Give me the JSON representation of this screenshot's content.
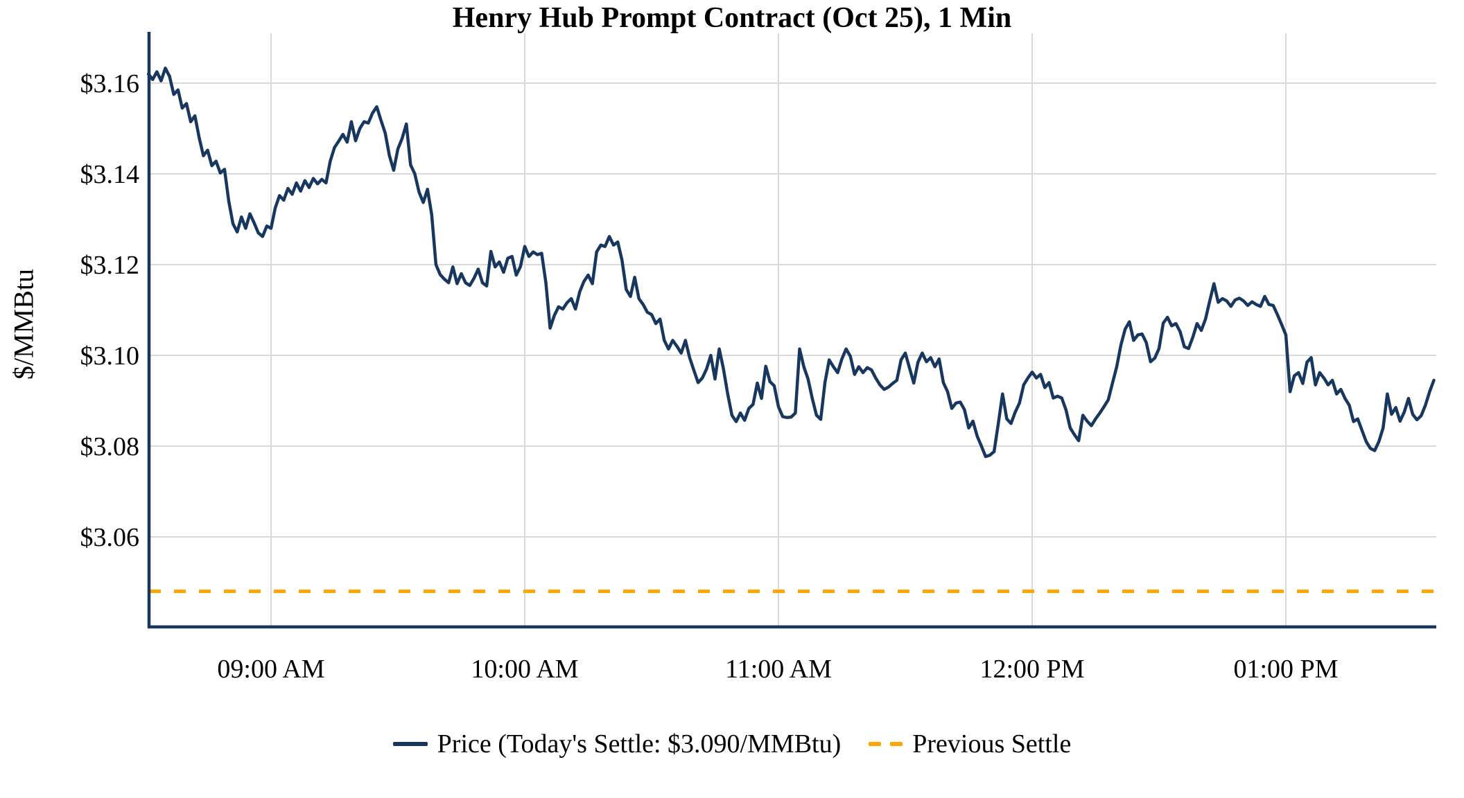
{
  "title": "Henry Hub Prompt Contract (Oct 25), 1 Min",
  "y_axis_label": "$/MMBtu",
  "legend": {
    "price_label": "Price (Today's Settle: $3.090/MMBtu)",
    "previous_settle_label": "Previous Settle"
  },
  "colors": {
    "price_line": "#17375E",
    "previous_settle_line": "#FFA500",
    "gridline": "#D9D9D9",
    "axis": "#17375E",
    "text": "#000000",
    "background": "#FFFFFF"
  },
  "chart_data": {
    "type": "line",
    "title": "Henry Hub Prompt Contract (Oct 25), 1 Min",
    "xlabel": "",
    "ylabel": "$/MMBtu",
    "grid": true,
    "legend_position": "bottom",
    "ylim": [
      3.04,
      3.171
    ],
    "y_ticks": [
      {
        "label": "$3.16",
        "value": 3.16
      },
      {
        "label": "$3.14",
        "value": 3.14
      },
      {
        "label": "$3.12",
        "value": 3.12
      },
      {
        "label": "$3.10",
        "value": 3.1
      },
      {
        "label": "$3.08",
        "value": 3.08
      },
      {
        "label": "$3.06",
        "value": 3.06
      }
    ],
    "x_start_time": "8:31 AM",
    "x_interval_minutes": 1,
    "x_ticks": [
      {
        "label": "09:00 AM",
        "minute": 29
      },
      {
        "label": "10:00 AM",
        "minute": 89
      },
      {
        "label": "11:00 AM",
        "minute": 149
      },
      {
        "label": "12:00 PM",
        "minute": 209
      },
      {
        "label": "01:00 PM",
        "minute": 269
      }
    ],
    "todays_settle": 3.09,
    "previous_settle": 3.048,
    "series": [
      {
        "name": "Price",
        "values": [
          3.162,
          3.1608,
          3.1625,
          3.1605,
          3.1633,
          3.1615,
          3.1575,
          3.1585,
          3.1545,
          3.1555,
          3.1515,
          3.1528,
          3.148,
          3.144,
          3.1452,
          3.1418,
          3.1428,
          3.1402,
          3.141,
          3.134,
          3.129,
          3.1272,
          3.1305,
          3.128,
          3.1312,
          3.1292,
          3.127,
          3.1262,
          3.1285,
          3.128,
          3.1325,
          3.1352,
          3.1342,
          3.1368,
          3.1355,
          3.138,
          3.1362,
          3.1385,
          3.137,
          3.139,
          3.1378,
          3.1388,
          3.138,
          3.1428,
          3.1458,
          3.1472,
          3.1487,
          3.147,
          3.1515,
          3.1473,
          3.15,
          3.1515,
          3.1512,
          3.1534,
          3.1548,
          3.1518,
          3.149,
          3.144,
          3.1408,
          3.1455,
          3.1478,
          3.151,
          3.142,
          3.14,
          3.136,
          3.1337,
          3.1366,
          3.131,
          3.12,
          3.1178,
          3.1168,
          3.116,
          3.1195,
          3.1158,
          3.118,
          3.116,
          3.1154,
          3.117,
          3.119,
          3.116,
          3.1153,
          3.1229,
          3.1195,
          3.1206,
          3.1183,
          3.1214,
          3.1218,
          3.1177,
          3.1196,
          3.124,
          3.1218,
          3.1228,
          3.1222,
          3.1225,
          3.116,
          3.106,
          3.1088,
          3.1107,
          3.1102,
          3.1116,
          3.1125,
          3.1102,
          3.114,
          3.1163,
          3.1177,
          3.1158,
          3.1228,
          3.1243,
          3.124,
          3.1262,
          3.1243,
          3.125,
          3.121,
          3.1145,
          3.113,
          3.1172,
          3.1125,
          3.1112,
          3.1095,
          3.109,
          3.107,
          3.108,
          3.1033,
          3.1014,
          3.1033,
          3.102,
          3.1005,
          3.1033,
          3.0995,
          3.0967,
          3.094,
          3.095,
          3.097,
          3.1,
          3.0948,
          3.1014,
          3.097,
          3.0915,
          3.0868,
          3.0854,
          3.0873,
          3.0857,
          3.0883,
          3.0892,
          3.0939,
          3.0905,
          3.0976,
          3.0942,
          3.0933,
          3.0887,
          3.0865,
          3.0863,
          3.0864,
          3.0873,
          3.1014,
          3.0975,
          3.0948,
          3.0905,
          3.0868,
          3.0859,
          3.094,
          3.099,
          3.0975,
          3.0962,
          3.0992,
          3.1014,
          3.0998,
          3.0958,
          3.0975,
          3.0962,
          3.0973,
          3.0968,
          3.095,
          3.0935,
          3.0925,
          3.093,
          3.0938,
          3.0945,
          3.099,
          3.1005,
          3.0972,
          3.0939,
          3.0985,
          3.1005,
          3.0986,
          3.0995,
          3.0975,
          3.0992,
          3.094,
          3.092,
          3.0883,
          3.0895,
          3.0897,
          3.088,
          3.084,
          3.0855,
          3.0822,
          3.08,
          3.0777,
          3.078,
          3.0788,
          3.085,
          3.0915,
          3.086,
          3.085,
          3.0875,
          3.0895,
          3.0935,
          3.095,
          3.0963,
          3.095,
          3.0958,
          3.0929,
          3.094,
          3.0906,
          3.091,
          3.0906,
          3.088,
          3.084,
          3.0825,
          3.0812,
          3.0868,
          3.0855,
          3.0845,
          3.086,
          3.0873,
          3.0887,
          3.0902,
          3.0939,
          3.0975,
          3.1023,
          3.1058,
          3.1074,
          3.1033,
          3.1045,
          3.1047,
          3.1028,
          3.0986,
          3.0994,
          3.1015,
          3.1071,
          3.1084,
          3.1065,
          3.107,
          3.1052,
          3.1019,
          3.1015,
          3.104,
          3.107,
          3.1055,
          3.108,
          3.112,
          3.1158,
          3.1117,
          3.1125,
          3.112,
          3.1108,
          3.1122,
          3.1126,
          3.112,
          3.111,
          3.1118,
          3.1112,
          3.1108,
          3.113,
          3.1112,
          3.111,
          3.109,
          3.1068,
          3.1045,
          3.092,
          3.0955,
          3.0962,
          3.0938,
          3.0985,
          3.0995,
          3.0935,
          3.0962,
          3.095,
          3.0935,
          3.0945,
          3.0915,
          3.0925,
          3.0905,
          3.089,
          3.0854,
          3.086,
          3.0835,
          3.081,
          3.0795,
          3.079,
          3.081,
          3.084,
          3.0915,
          3.087,
          3.0885,
          3.0855,
          3.0875,
          3.0905,
          3.087,
          3.0858,
          3.0867,
          3.089,
          3.092,
          3.0945
        ]
      },
      {
        "name": "Previous Settle",
        "style": "dashed",
        "constant_value": 3.048
      }
    ]
  }
}
